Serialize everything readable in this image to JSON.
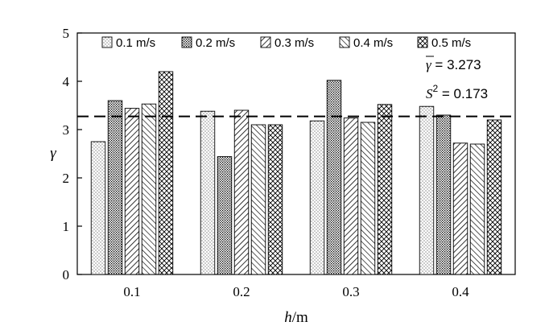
{
  "chart_data": {
    "type": "bar",
    "categories": [
      "0.1",
      "0.2",
      "0.3",
      "0.4"
    ],
    "series": [
      {
        "name": "0.1 m/s",
        "values": [
          2.75,
          3.38,
          3.18,
          3.48
        ]
      },
      {
        "name": "0.2 m/s",
        "values": [
          3.6,
          2.44,
          4.02,
          3.3
        ]
      },
      {
        "name": "0.3 m/s",
        "values": [
          3.44,
          3.4,
          3.24,
          2.72
        ]
      },
      {
        "name": "0.4 m/s",
        "values": [
          3.53,
          3.1,
          3.15,
          2.7
        ]
      },
      {
        "name": "0.5 m/s",
        "values": [
          4.2,
          3.1,
          3.52,
          3.2
        ]
      }
    ],
    "reference_line": {
      "value": 3.273,
      "style": "dashed"
    },
    "xlabel_var": "h",
    "xlabel_unit": "/m",
    "ylabel": "γ",
    "ylim": [
      0,
      5
    ],
    "yticks": [
      "0",
      "1",
      "2",
      "3",
      "4",
      "5"
    ],
    "grid": false,
    "legend_position": "top",
    "annotations": {
      "mean_label": "γ",
      "mean_value": " = 3.273",
      "variance_label": "S",
      "variance_sup": "2",
      "variance_value": " = 0.173"
    },
    "colors": {
      "bar_fill": "#ffffff",
      "pattern": "#000000",
      "axis": "#000000"
    }
  }
}
